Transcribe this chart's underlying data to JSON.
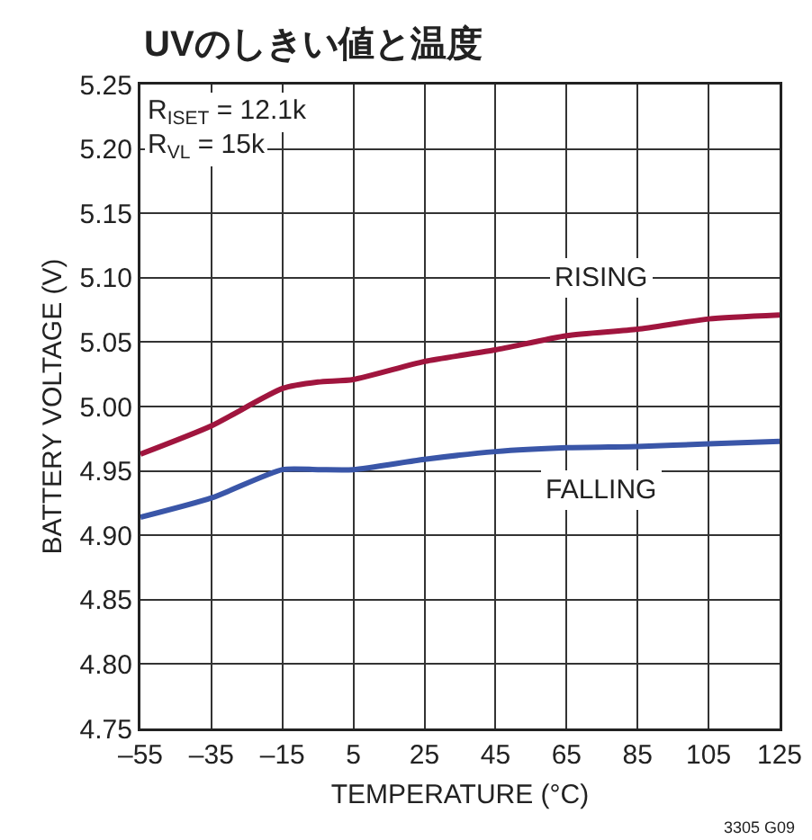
{
  "chart_data": {
    "type": "line",
    "title": "UVのしきい値と温度",
    "xlabel": "TEMPERATURE (°C)",
    "ylabel": "BATTERY VOLTAGE (V)",
    "x": [
      -55,
      -35,
      -15,
      -5,
      5,
      25,
      45,
      65,
      85,
      105,
      125
    ],
    "series": [
      {
        "name": "RISING",
        "color": "#a0153e",
        "values": [
          4.963,
          4.985,
          5.014,
          5.019,
          5.021,
          5.035,
          5.044,
          5.055,
          5.06,
          5.068,
          5.071
        ]
      },
      {
        "name": "FALLING",
        "color": "#3a56a8",
        "values": [
          4.914,
          4.929,
          4.951,
          4.951,
          4.951,
          4.959,
          4.965,
          4.968,
          4.969,
          4.971,
          4.973
        ]
      }
    ],
    "xlim": [
      -55,
      125
    ],
    "xticks": [
      {
        "value": -55,
        "label": "–55"
      },
      {
        "value": -35,
        "label": "–35"
      },
      {
        "value": -15,
        "label": "–15"
      },
      5,
      25,
      45,
      65,
      85,
      105,
      125
    ],
    "ylim": [
      4.75,
      5.25
    ],
    "yticks": [
      {
        "value": 4.75,
        "label": "4.75"
      },
      {
        "value": 4.8,
        "label": "4.80"
      },
      {
        "value": 4.85,
        "label": "4.85"
      },
      {
        "value": 4.9,
        "label": "4.90"
      },
      {
        "value": 4.95,
        "label": "4.95"
      },
      {
        "value": 5,
        "label": "5.00"
      },
      {
        "value": 5.05,
        "label": "5.05"
      },
      {
        "value": 5.1,
        "label": "5.10"
      },
      {
        "value": 5.15,
        "label": "5.15"
      },
      {
        "value": 5.2,
        "label": "5.20"
      },
      {
        "value": 5.25,
        "label": "5.25"
      }
    ],
    "annotations": [
      "R$_{ISET}$ = 12.1k",
      "R$_{VL}$ = 15k",
      "3305 G09"
    ],
    "grid": true,
    "legend": false,
    "line_style": "solid",
    "marker": "none"
  }
}
